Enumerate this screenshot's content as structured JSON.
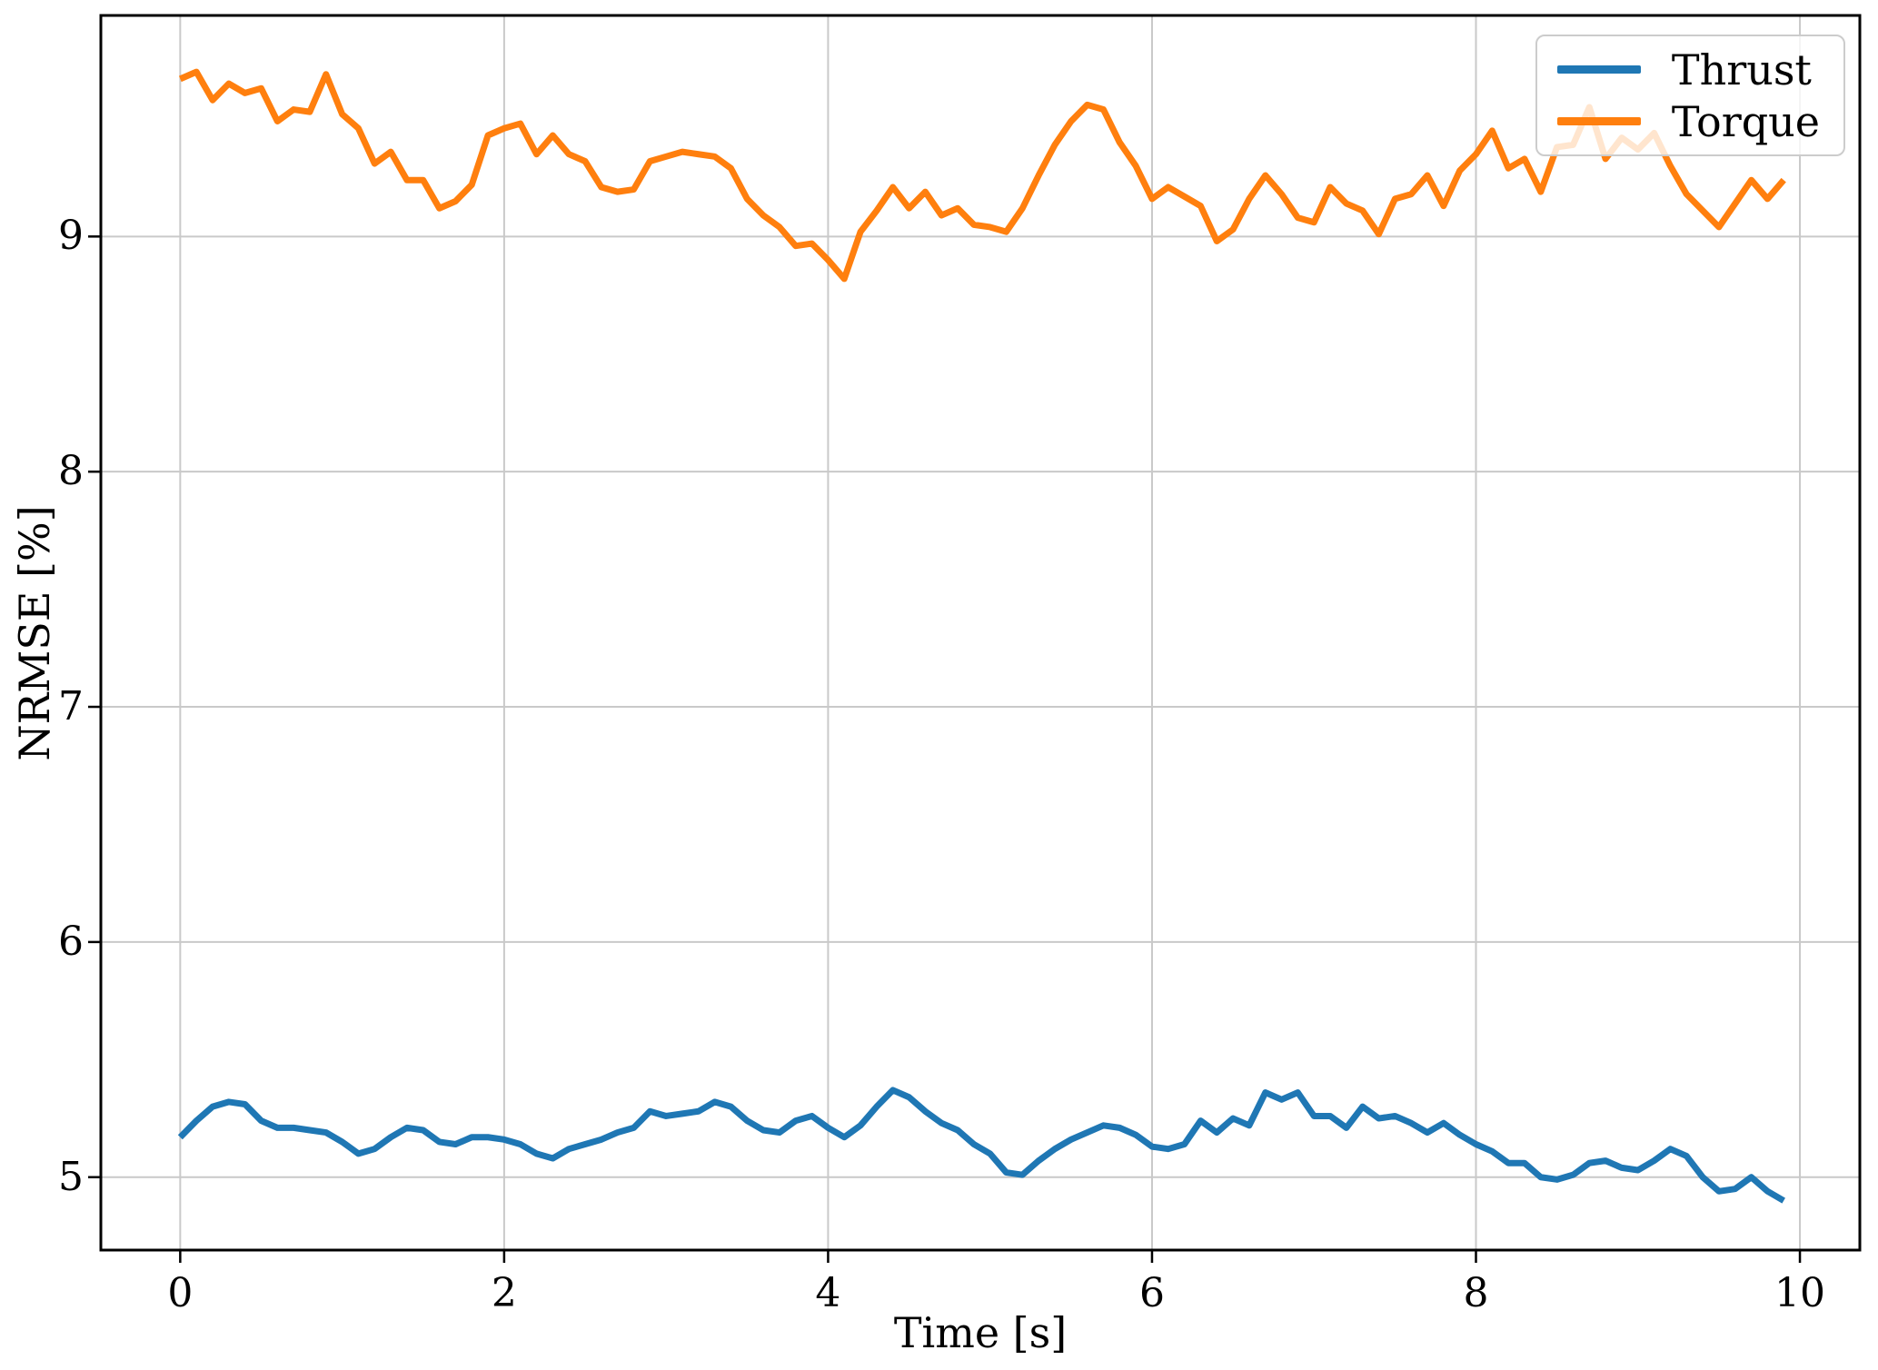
{
  "chart_data": {
    "type": "line",
    "title": "",
    "xlabel": "Time [s]",
    "ylabel": "NRMSE [%]",
    "xlim": [
      -0.49,
      10.37
    ],
    "ylim": [
      4.69,
      9.94
    ],
    "xticks": [
      0,
      2,
      4,
      6,
      8,
      10
    ],
    "yticks": [
      5,
      6,
      7,
      8,
      9
    ],
    "grid": true,
    "grid_color": "#c9c9c9",
    "spine_color": "#000000",
    "legend_position": "upper right",
    "x_start": 0.0,
    "x_step": 0.1,
    "series": [
      {
        "name": "Thrust",
        "color": "#1f77b4",
        "values": [
          5.17,
          5.24,
          5.3,
          5.32,
          5.31,
          5.24,
          5.21,
          5.21,
          5.2,
          5.19,
          5.15,
          5.1,
          5.12,
          5.17,
          5.21,
          5.2,
          5.15,
          5.14,
          5.17,
          5.17,
          5.16,
          5.14,
          5.1,
          5.08,
          5.12,
          5.14,
          5.16,
          5.19,
          5.21,
          5.28,
          5.26,
          5.27,
          5.28,
          5.32,
          5.3,
          5.24,
          5.2,
          5.19,
          5.24,
          5.26,
          5.21,
          5.17,
          5.22,
          5.3,
          5.37,
          5.34,
          5.28,
          5.23,
          5.2,
          5.14,
          5.1,
          5.02,
          5.01,
          5.07,
          5.12,
          5.16,
          5.19,
          5.22,
          5.21,
          5.18,
          5.13,
          5.12,
          5.14,
          5.24,
          5.19,
          5.25,
          5.22,
          5.36,
          5.33,
          5.36,
          5.26,
          5.26,
          5.21,
          5.3,
          5.25,
          5.26,
          5.23,
          5.19,
          5.23,
          5.18,
          5.14,
          5.11,
          5.06,
          5.06,
          5.0,
          4.99,
          5.01,
          5.06,
          5.07,
          5.04,
          5.03,
          5.07,
          5.12,
          5.09,
          5.0,
          4.94,
          4.95,
          5.0,
          4.94,
          4.9
        ]
      },
      {
        "name": "Torque",
        "color": "#ff7f0e",
        "values": [
          9.67,
          9.7,
          9.58,
          9.65,
          9.61,
          9.63,
          9.49,
          9.54,
          9.53,
          9.69,
          9.52,
          9.46,
          9.31,
          9.36,
          9.24,
          9.24,
          9.12,
          9.15,
          9.22,
          9.43,
          9.46,
          9.48,
          9.35,
          9.43,
          9.35,
          9.32,
          9.21,
          9.19,
          9.2,
          9.32,
          9.34,
          9.36,
          9.35,
          9.34,
          9.29,
          9.16,
          9.09,
          9.04,
          8.96,
          8.97,
          8.9,
          8.82,
          9.02,
          9.11,
          9.21,
          9.12,
          9.19,
          9.09,
          9.12,
          9.05,
          9.04,
          9.02,
          9.12,
          9.26,
          9.39,
          9.49,
          9.56,
          9.54,
          9.4,
          9.3,
          9.16,
          9.21,
          9.17,
          9.13,
          8.98,
          9.03,
          9.16,
          9.26,
          9.18,
          9.08,
          9.06,
          9.21,
          9.14,
          9.11,
          9.01,
          9.16,
          9.18,
          9.26,
          9.13,
          9.28,
          9.35,
          9.45,
          9.29,
          9.33,
          9.19,
          9.38,
          9.39,
          9.55,
          9.33,
          9.42,
          9.37,
          9.44,
          9.3,
          9.18,
          9.11,
          9.04,
          9.14,
          9.24,
          9.16,
          9.24
        ]
      }
    ]
  },
  "legend": {
    "items": [
      {
        "label": "Thrust"
      },
      {
        "label": "Torque"
      }
    ]
  }
}
